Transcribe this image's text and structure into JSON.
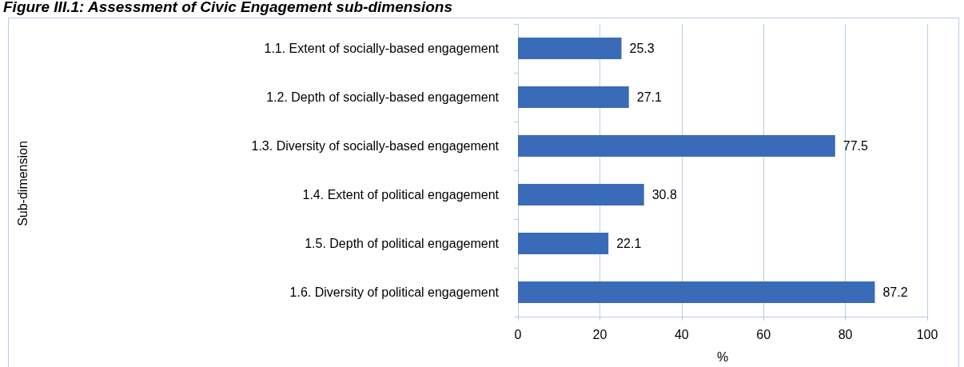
{
  "chart_data": {
    "type": "bar",
    "orientation": "horizontal",
    "title": "Figure III.1: Assessment of Civic Engagement sub-dimensions",
    "xlabel": "%",
    "annotations": [
      "Sub-dimension"
    ],
    "categories": [
      "1.1. Extent of socially-based engagement",
      "1.2. Depth of socially-based engagement",
      "1.3. Diversity of socially-based engagement",
      "1.4. Extent of political engagement",
      "1.5. Depth of political engagement",
      "1.6. Diversity of political engagement"
    ],
    "values": [
      25.3,
      27.1,
      77.5,
      30.8,
      22.1,
      87.2
    ],
    "color": "#3a6bb8",
    "data_labels": true,
    "grid": "x",
    "xlim": [
      0,
      100
    ],
    "xticks": [
      0,
      20,
      40,
      60,
      80,
      100
    ]
  }
}
